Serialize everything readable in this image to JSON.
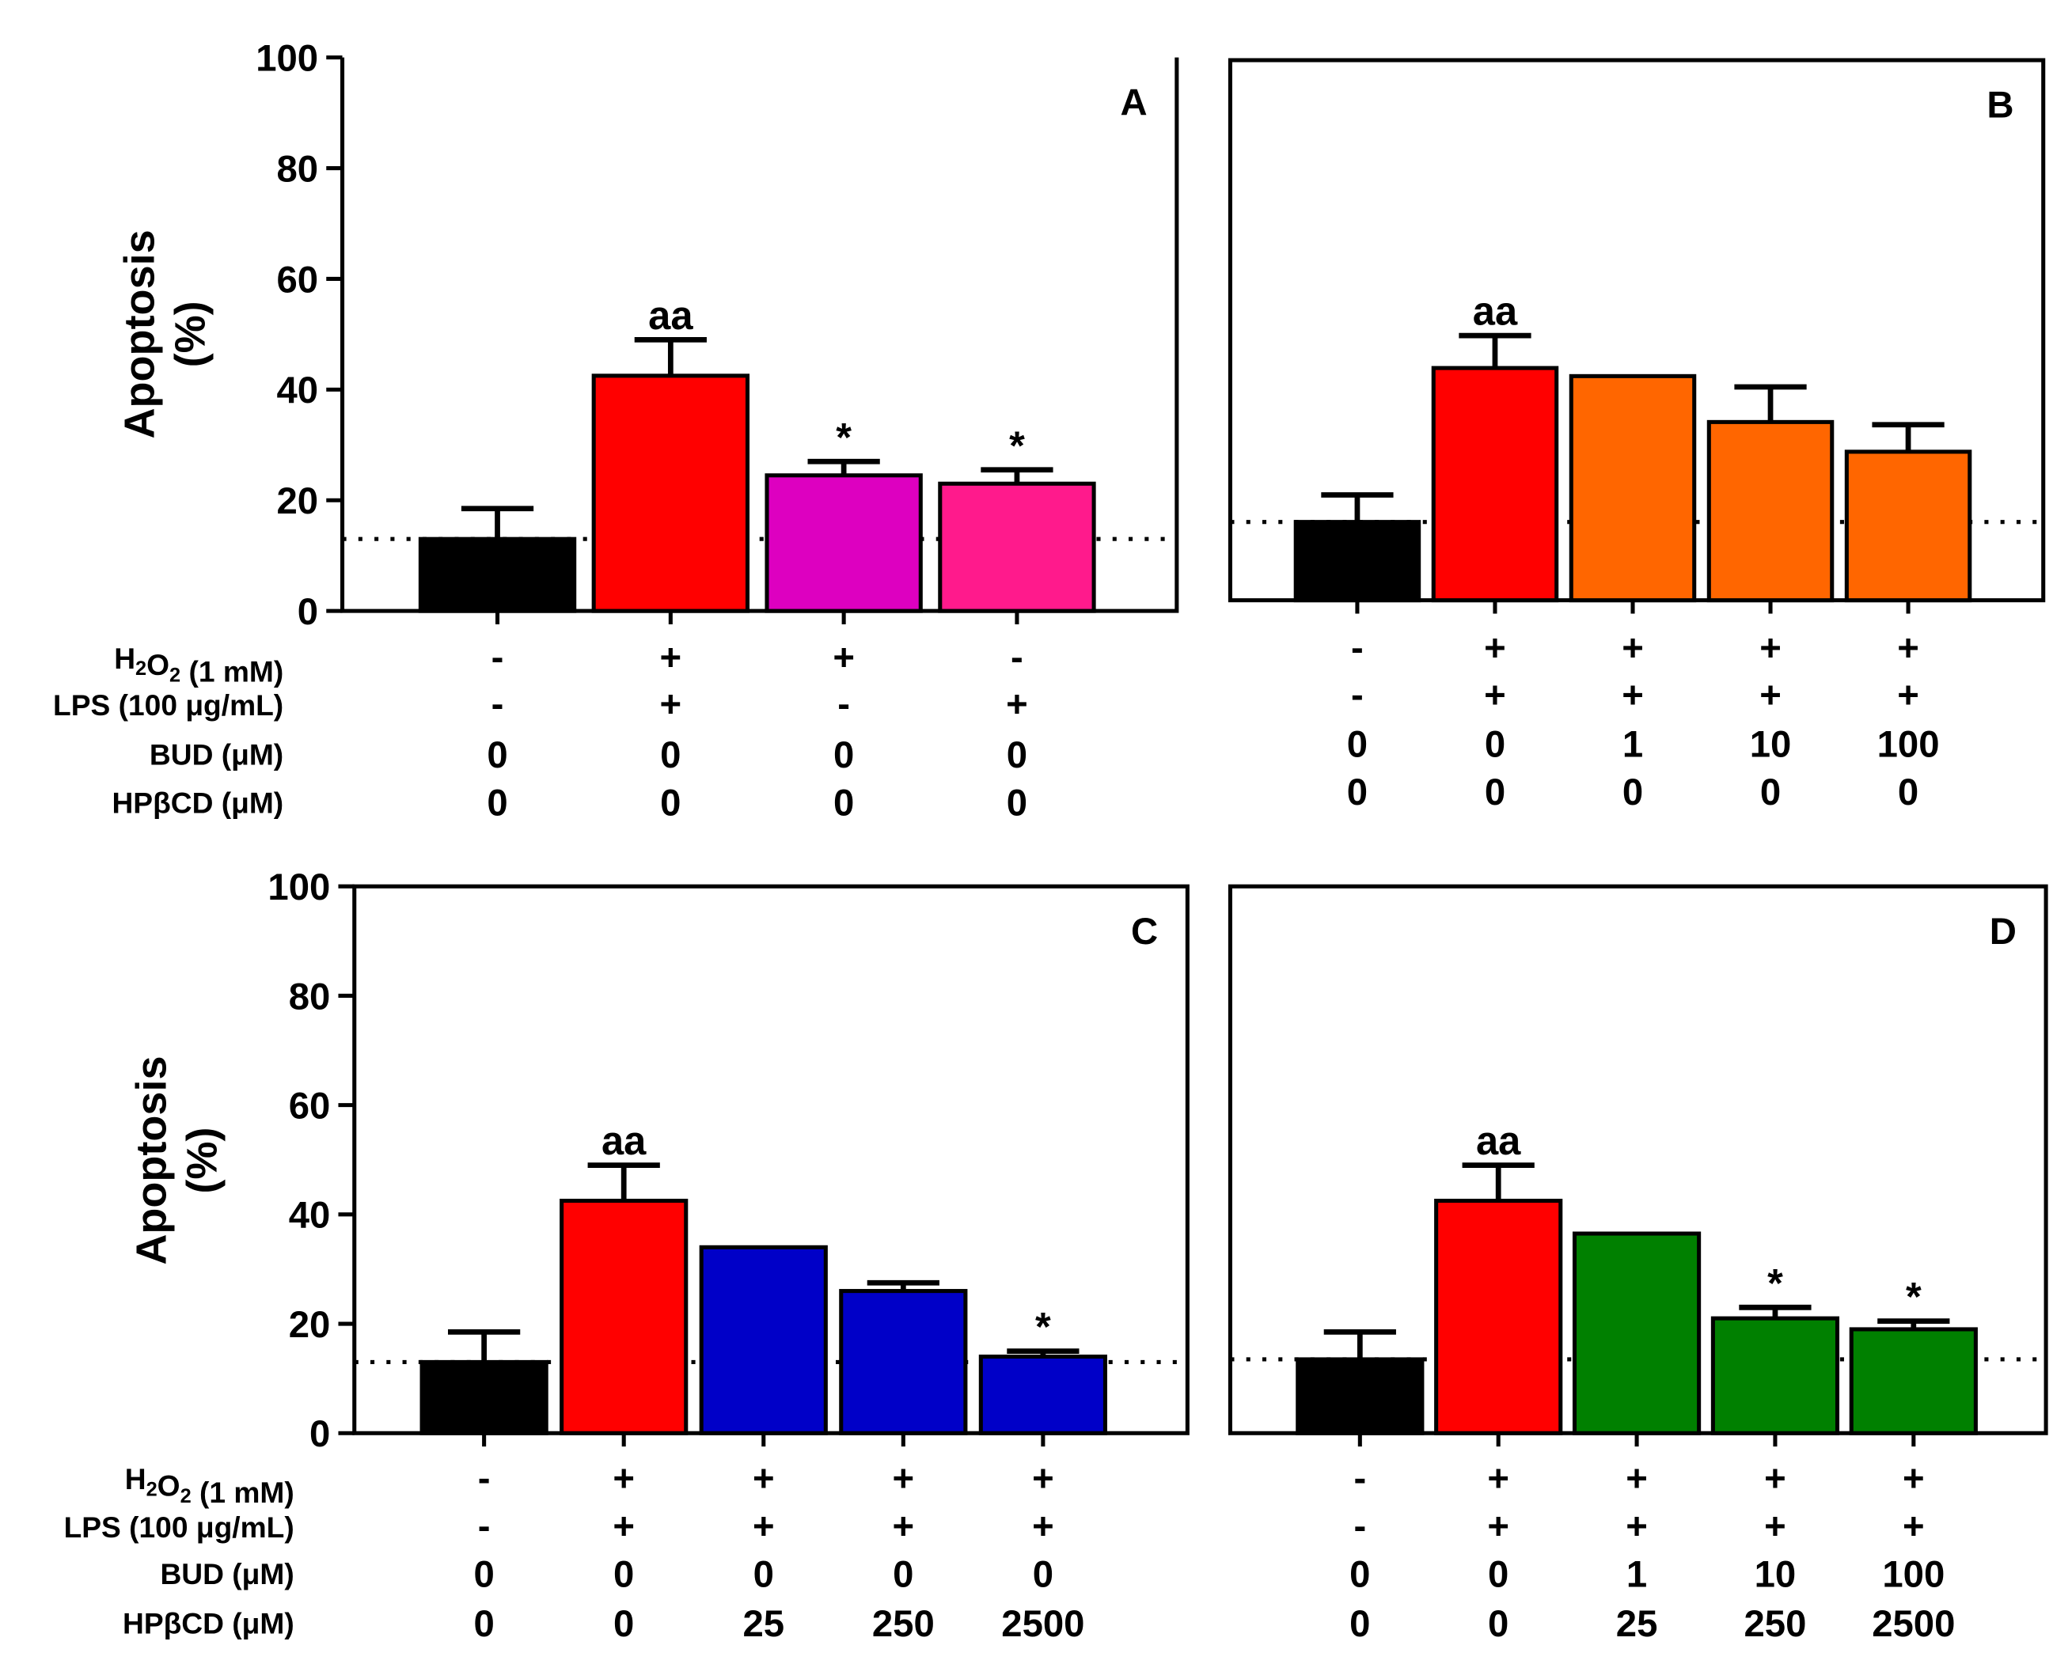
{
  "figure": {
    "ylabel_line1": "Apoptosis",
    "ylabel_line2": "(%)",
    "row_labels": {
      "h2o2_prefix": "H",
      "h2o2_sub1": "2",
      "h2o2_mid": "O",
      "h2o2_sub2": "2",
      "h2o2_suffix": " (1 mM)",
      "lps": "LPS (100 μg/mL)",
      "bud": "BUD (μM)",
      "hpbcd": "HPβCD (μM)"
    }
  },
  "chart_data": [
    {
      "type": "bar",
      "panel": "A",
      "ylim": [
        0,
        100
      ],
      "yticks": [
        0,
        20,
        40,
        60,
        80,
        100
      ],
      "show_yticks": true,
      "baseline": 13,
      "ylabel": "Apoptosis (%)",
      "categories": [
        "1",
        "2",
        "3",
        "4"
      ],
      "values": [
        13,
        42.5,
        24.5,
        23
      ],
      "errors": [
        5.5,
        6.5,
        2.5,
        2.5
      ],
      "annotations": [
        "",
        "aa",
        "*",
        "*"
      ],
      "colors": [
        "#000000",
        "#ff0000",
        "#dd00c0",
        "#ff1a8c"
      ],
      "rows": {
        "h2o2": [
          "-",
          "+",
          "+",
          "-"
        ],
        "lps": [
          "-",
          "+",
          "-",
          "+"
        ],
        "bud": [
          "0",
          "0",
          "0",
          "0"
        ],
        "hpbcd": [
          "0",
          "0",
          "0",
          "0"
        ]
      }
    },
    {
      "type": "bar",
      "panel": "B",
      "ylim": [
        0,
        100
      ],
      "show_yticks": false,
      "baseline": 14.5,
      "categories": [
        "1",
        "2",
        "3",
        "4",
        "5"
      ],
      "values": [
        14.5,
        43,
        41.5,
        33,
        27.5
      ],
      "errors": [
        5,
        6,
        0,
        6.5,
        5
      ],
      "annotations": [
        "",
        "aa",
        "",
        "",
        ""
      ],
      "colors": [
        "#000000",
        "#ff0000",
        "#ff6600",
        "#ff6600",
        "#ff6600"
      ],
      "rows": {
        "h2o2": [
          "-",
          "+",
          "+",
          "+",
          "+"
        ],
        "lps": [
          "-",
          "+",
          "+",
          "+",
          "+"
        ],
        "bud": [
          "0",
          "0",
          "1",
          "10",
          "100"
        ],
        "hpbcd": [
          "0",
          "0",
          "0",
          "0",
          "0"
        ]
      }
    },
    {
      "type": "bar",
      "panel": "C",
      "ylim": [
        0,
        100
      ],
      "yticks": [
        0,
        20,
        40,
        60,
        80,
        100
      ],
      "show_yticks": true,
      "baseline": 13,
      "ylabel": "Apoptosis (%)",
      "categories": [
        "1",
        "2",
        "3",
        "4",
        "5"
      ],
      "values": [
        13,
        42.5,
        34,
        26,
        14
      ],
      "errors": [
        5.5,
        6.5,
        0,
        1.5,
        1
      ],
      "annotations": [
        "",
        "aa",
        "",
        "",
        "*"
      ],
      "colors": [
        "#000000",
        "#ff0000",
        "#0000c8",
        "#0000c8",
        "#0000c8"
      ],
      "rows": {
        "h2o2": [
          "-",
          "+",
          "+",
          "+",
          "+"
        ],
        "lps": [
          "-",
          "+",
          "+",
          "+",
          "+"
        ],
        "bud": [
          "0",
          "0",
          "0",
          "0",
          "0"
        ],
        "hpbcd": [
          "0",
          "0",
          "25",
          "250",
          "2500"
        ]
      }
    },
    {
      "type": "bar",
      "panel": "D",
      "ylim": [
        0,
        100
      ],
      "show_yticks": false,
      "baseline": 13.5,
      "categories": [
        "1",
        "2",
        "3",
        "4",
        "5"
      ],
      "values": [
        13.5,
        42.5,
        36.5,
        21,
        19
      ],
      "errors": [
        5,
        6.5,
        0,
        2,
        1.5
      ],
      "annotations": [
        "",
        "aa",
        "",
        "*",
        "*"
      ],
      "colors": [
        "#000000",
        "#ff0000",
        "#008000",
        "#008000",
        "#008000"
      ],
      "rows": {
        "h2o2": [
          "-",
          "+",
          "+",
          "+",
          "+"
        ],
        "lps": [
          "-",
          "+",
          "+",
          "+",
          "+"
        ],
        "bud": [
          "0",
          "0",
          "1",
          "10",
          "100"
        ],
        "hpbcd": [
          "0",
          "0",
          "25",
          "250",
          "2500"
        ]
      }
    }
  ]
}
